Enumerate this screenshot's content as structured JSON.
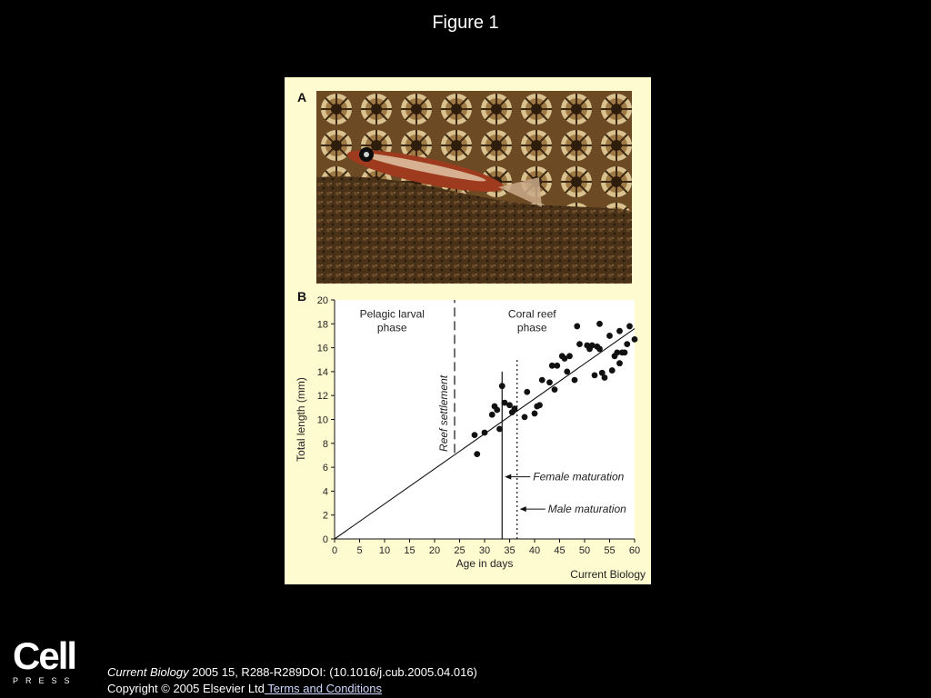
{
  "slide": {
    "title": "Figure 1"
  },
  "figure": {
    "panel_a_label": "A",
    "panel_b_label": "B",
    "source": "Current Biology"
  },
  "chart_data": {
    "type": "scatter",
    "xlabel": "Age in days",
    "ylabel": "Total length (mm)",
    "xlim": [
      0,
      60
    ],
    "ylim": [
      0,
      20
    ],
    "xticks": [
      0,
      5,
      10,
      15,
      20,
      25,
      30,
      35,
      40,
      45,
      50,
      55,
      60
    ],
    "yticks": [
      0,
      2,
      4,
      6,
      8,
      10,
      12,
      14,
      16,
      18,
      20
    ],
    "grid": false,
    "phase_labels": [
      {
        "text": [
          "Pelagic larval",
          "phase"
        ],
        "x": 11.5,
        "y": 18.5
      },
      {
        "text": [
          "Coral reef",
          "phase"
        ],
        "x": 39.5,
        "y": 18.5
      }
    ],
    "fit_line": {
      "x": [
        0,
        60
      ],
      "y": [
        0,
        17.6
      ]
    },
    "vertical_lines": [
      {
        "label": "Reef settlement",
        "x": 24,
        "y_from": 7.2,
        "y_to": 20,
        "style": "dashed"
      },
      {
        "label": "Female maturation",
        "x": 33.5,
        "y_from": 0,
        "y_to": 14,
        "style": "solid",
        "annotation_y": 5.2
      },
      {
        "label": "Male maturation",
        "x": 36.5,
        "y_from": 0,
        "y_to": 15,
        "style": "dotted",
        "annotation_y": 2.5
      }
    ],
    "points": [
      [
        28,
        8.7
      ],
      [
        28.5,
        7.1
      ],
      [
        30,
        8.9
      ],
      [
        31.5,
        10.4
      ],
      [
        32,
        11.1
      ],
      [
        32.5,
        10.8
      ],
      [
        33,
        9.2
      ],
      [
        33.5,
        12.8
      ],
      [
        34,
        11.4
      ],
      [
        35,
        11.2
      ],
      [
        35.5,
        10.6
      ],
      [
        36,
        10.9
      ],
      [
        38,
        10.2
      ],
      [
        38.5,
        12.3
      ],
      [
        40,
        10.5
      ],
      [
        40.5,
        11.1
      ],
      [
        41,
        11.2
      ],
      [
        41.5,
        13.3
      ],
      [
        43,
        13.1
      ],
      [
        43.5,
        14.5
      ],
      [
        44,
        12.5
      ],
      [
        44.5,
        14.5
      ],
      [
        45.5,
        15.3
      ],
      [
        46,
        15.1
      ],
      [
        46.5,
        14.0
      ],
      [
        47,
        15.3
      ],
      [
        48,
        13.3
      ],
      [
        48.5,
        17.8
      ],
      [
        49,
        16.3
      ],
      [
        50.5,
        16.2
      ],
      [
        51,
        15.9
      ],
      [
        51.5,
        16.2
      ],
      [
        52,
        13.7
      ],
      [
        52.5,
        16.1
      ],
      [
        53,
        18.0
      ],
      [
        53,
        15.9
      ],
      [
        53.5,
        13.9
      ],
      [
        54,
        13.5
      ],
      [
        55,
        17.0
      ],
      [
        55.5,
        14.1
      ],
      [
        56,
        15.3
      ],
      [
        56.5,
        15.6
      ],
      [
        57,
        17.4
      ],
      [
        57,
        14.7
      ],
      [
        57.5,
        15.6
      ],
      [
        58,
        15.6
      ],
      [
        58.5,
        16.3
      ],
      [
        59,
        17.8
      ],
      [
        60,
        16.7
      ]
    ]
  },
  "footer": {
    "logo_word": "Cell",
    "logo_press": "PRESS",
    "journal": "Current Biology",
    "citation": " 2005 15, R288-R289DOI: (10.1016/j.cub.2005.04.016)",
    "copyright": "Copyright © 2005 Elsevier Ltd",
    "terms_link": " Terms and Conditions"
  }
}
